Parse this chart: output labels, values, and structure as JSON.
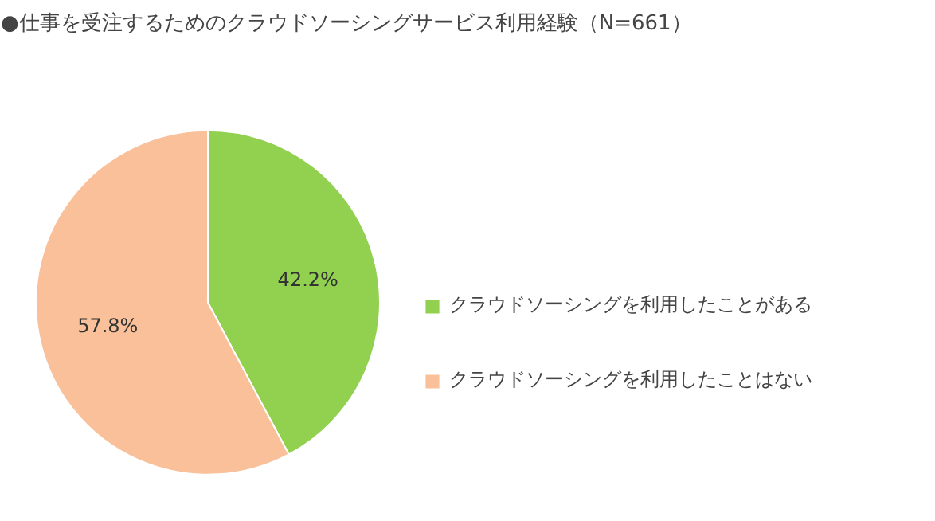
{
  "chart_data": {
    "type": "pie",
    "title": "●仕事を受注するためのクラウドソーシングサービス利用経験（N=661）",
    "categories": [
      "クラウドソーシングを利用したことがある",
      "クラウドソーシングを利用したことはない"
    ],
    "values": [
      42.2,
      57.8
    ],
    "value_labels": [
      "42.2%",
      "57.8%"
    ],
    "colors": [
      "#92d050",
      "#f9c09a"
    ],
    "legend": "right"
  }
}
